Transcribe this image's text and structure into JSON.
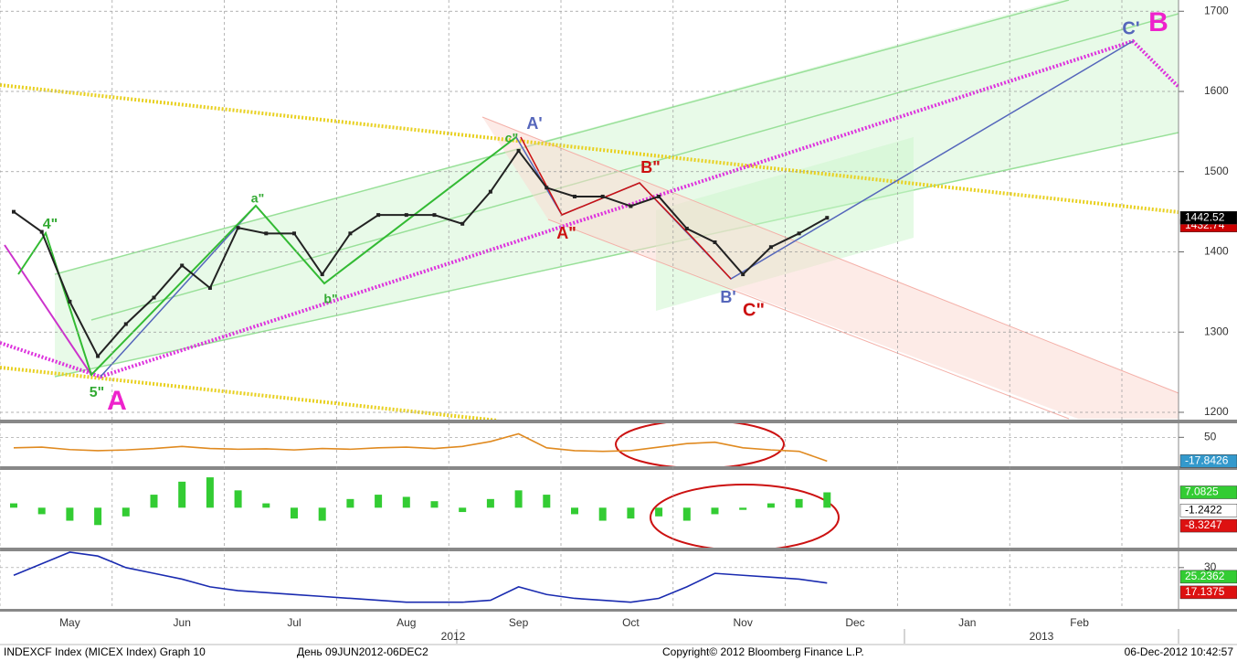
{
  "chart_data": [
    {
      "type": "line",
      "categories": [
        null,
        null,
        "May",
        null,
        null,
        null,
        "Jun",
        null,
        null,
        null,
        "Jul",
        null,
        null,
        null,
        "Aug",
        null,
        null,
        null,
        "Sep",
        null,
        null,
        null,
        "Oct",
        null,
        null,
        null,
        "Nov",
        null,
        null,
        null,
        "Dec",
        null,
        null,
        null,
        "Jan",
        null,
        null,
        null,
        "Feb",
        null,
        null,
        null
      ],
      "values": [
        1450,
        1425,
        1338,
        1270,
        1310,
        1343,
        1383,
        1355,
        1430,
        1423,
        1423,
        1372,
        1423,
        1446,
        1446,
        1446,
        1435,
        1475,
        1526,
        1480,
        1469,
        1469,
        1457,
        1469,
        1429,
        1412,
        1372,
        1406,
        1423,
        1442.52,
        null,
        null,
        null,
        null,
        null,
        null,
        null,
        null,
        null,
        null,
        null,
        null
      ],
      "color": "#222222",
      "ylim": [
        1192,
        1714
      ],
      "yticks": [
        1200,
        1300,
        1400,
        1500,
        1600,
        1700
      ],
      "grid": true,
      "year_labels": [
        "2012",
        "2013"
      ],
      "price_labels": [
        {
          "value": 1432.74,
          "color": "#cc0000"
        },
        {
          "value": 1442.52,
          "color": "#000000"
        }
      ],
      "annotations": [
        {
          "text": "4\"",
          "color": "#33aa33"
        },
        {
          "text": "5\"",
          "color": "#33aa33"
        },
        {
          "text": "A",
          "color": "#ee22cc"
        },
        {
          "text": "a\"",
          "color": "#33aa33"
        },
        {
          "text": "b\"",
          "color": "#33aa33"
        },
        {
          "text": "c\"",
          "color": "#33aa33"
        },
        {
          "text": "A'",
          "color": "#5566bb"
        },
        {
          "text": "A\"",
          "color": "#cc1111"
        },
        {
          "text": "B\"",
          "color": "#cc1111"
        },
        {
          "text": "B'",
          "color": "#5566bb"
        },
        {
          "text": "C\"",
          "color": "#cc1111"
        },
        {
          "text": "C'",
          "color": "#5566bb"
        },
        {
          "text": "B",
          "color": "#ee22cc"
        }
      ]
    },
    {
      "type": "line",
      "color": "#e08a20",
      "values": [
        20,
        22,
        15,
        12,
        14,
        18,
        24,
        18,
        16,
        17,
        14,
        18,
        16,
        20,
        22,
        18,
        24,
        38,
        60,
        20,
        12,
        10,
        12,
        22,
        32,
        36,
        20,
        14,
        10,
        -17.8426
      ],
      "ylim": [
        -30,
        90
      ],
      "yticks": [
        50
      ],
      "value_tags": [
        {
          "value": -17.8426,
          "color": "#3399cc"
        }
      ]
    },
    {
      "type": "bar",
      "color": "#33cc33",
      "values": [
        2,
        -3,
        -6,
        -8,
        -4,
        6,
        12,
        14,
        8,
        2,
        -5,
        -6,
        4,
        6,
        5,
        3,
        -2,
        4,
        8,
        6,
        -3,
        -6,
        -5,
        -4,
        -6,
        -3,
        -1,
        2,
        4,
        7.0825
      ],
      "ylim": [
        -18,
        17
      ],
      "yticks": [],
      "value_tags": [
        {
          "value": 7.0825,
          "color": "#33cc33"
        },
        {
          "value": -1.2422,
          "color": "#ffffff"
        },
        {
          "value": -8.3247,
          "color": "#dd1111"
        }
      ]
    },
    {
      "type": "line",
      "color": "#1a2bb0",
      "values": [
        26,
        32,
        38,
        36,
        30,
        27,
        24,
        20,
        18,
        17,
        16,
        15,
        14,
        13,
        12,
        12,
        12,
        13,
        20,
        16,
        14,
        13,
        12,
        14,
        20,
        27,
        26,
        25,
        24,
        22
      ],
      "ylim": [
        9,
        38
      ],
      "yticks": [
        30
      ],
      "value_tags": [
        {
          "value": 25.2362,
          "color": "#33cc33"
        },
        {
          "value": 17.1375,
          "color": "#dd1111"
        }
      ]
    }
  ],
  "footer": {
    "left": "INDEXCF Index (MICEX Index) Graph 10",
    "range": "День 09JUN2012-06DEC2",
    "copyright": "Copyright© 2012 Bloomberg Finance L.P.",
    "timestamp": "06-Dec-2012 10:42:57"
  }
}
